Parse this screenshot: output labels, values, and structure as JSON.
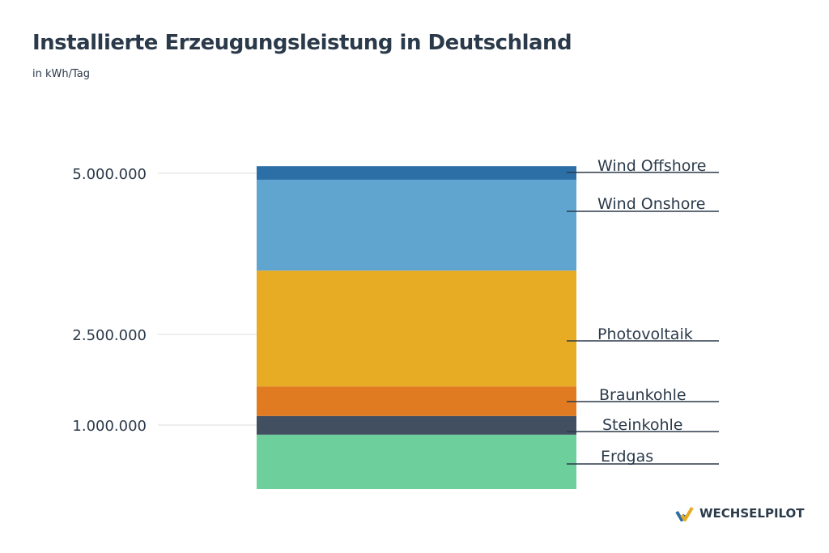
{
  "chart_data": {
    "type": "bar",
    "stacked": true,
    "title": "Installierte Erzeugungsleistung in Deutschland",
    "subtitle": "in kWh/Tag",
    "yticks": [
      {
        "value": 1000000,
        "label": "1.000.000"
      },
      {
        "value": 2500000,
        "label": "2.500.000"
      },
      {
        "value": 5000000,
        "label": "5.000.000"
      }
    ],
    "grid": true,
    "legend": "right (direct labels)",
    "series": [
      {
        "name": "Erdgas",
        "value": 850000,
        "color": "#6ccf9c"
      },
      {
        "name": "Steinkohle",
        "value": 300000,
        "color": "#414f60"
      },
      {
        "name": "Braunkohle",
        "value": 490000,
        "color": "#e07b22"
      },
      {
        "name": "Photovoltaik",
        "value": 1850000,
        "color": "#e8ab24"
      },
      {
        "name": "Wind Onshore",
        "value": 1410000,
        "color": "#5fa5cf"
      },
      {
        "name": "Wind Offshore",
        "value": 210000,
        "color": "#2c6ea6"
      }
    ]
  },
  "logo": {
    "text": "WECHSELPILOT"
  }
}
